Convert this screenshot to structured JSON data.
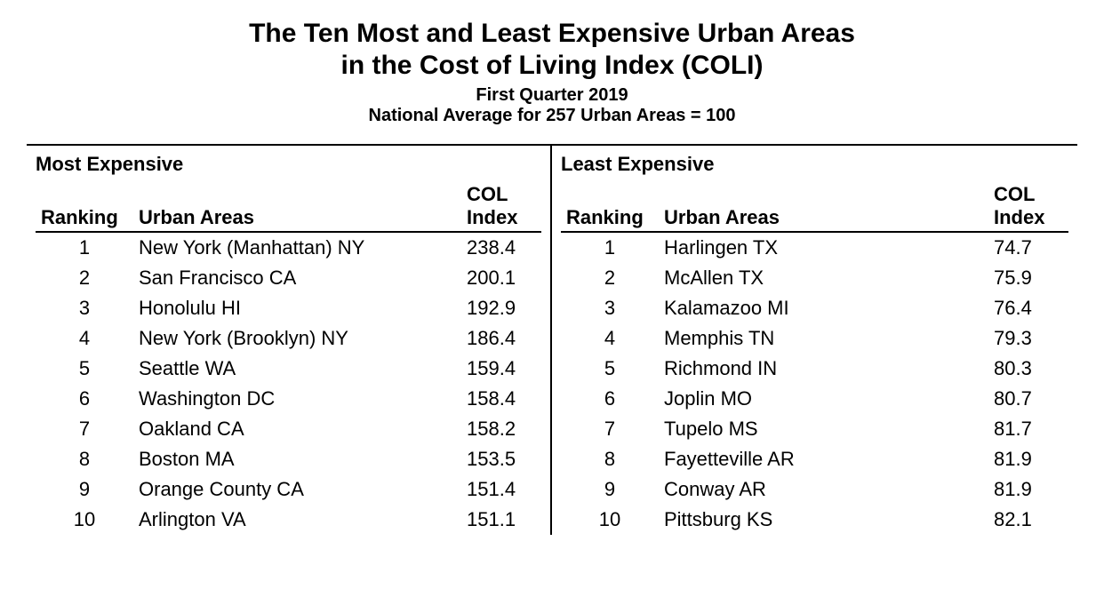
{
  "title_line1": "The Ten Most and Least Expensive Urban Areas",
  "title_line2": "in the Cost of Living Index (COLI)",
  "subtitle1": "First Quarter 2019",
  "subtitle2": "National Average for 257 Urban Areas = 100",
  "columns": {
    "ranking": "Ranking",
    "urban_areas": "Urban Areas",
    "col_index_top": "COL",
    "col_index_bottom": "Index"
  },
  "most_expensive": {
    "label": "Most Expensive",
    "rows": [
      {
        "rank": "1",
        "area": "New York (Manhattan) NY",
        "index": "238.4"
      },
      {
        "rank": "2",
        "area": "San Francisco CA",
        "index": "200.1"
      },
      {
        "rank": "3",
        "area": "Honolulu HI",
        "index": "192.9"
      },
      {
        "rank": "4",
        "area": "New York (Brooklyn) NY",
        "index": "186.4"
      },
      {
        "rank": "5",
        "area": "Seattle WA",
        "index": "159.4"
      },
      {
        "rank": "6",
        "area": "Washington DC",
        "index": "158.4"
      },
      {
        "rank": "7",
        "area": "Oakland CA",
        "index": "158.2"
      },
      {
        "rank": "8",
        "area": "Boston MA",
        "index": "153.5"
      },
      {
        "rank": "9",
        "area": "Orange County CA",
        "index": "151.4"
      },
      {
        "rank": "10",
        "area": "Arlington VA",
        "index": "151.1"
      }
    ]
  },
  "least_expensive": {
    "label": "Least Expensive",
    "rows": [
      {
        "rank": "1",
        "area": "Harlingen TX",
        "index": "74.7"
      },
      {
        "rank": "2",
        "area": "McAllen TX",
        "index": "75.9"
      },
      {
        "rank": "3",
        "area": "Kalamazoo MI",
        "index": "76.4"
      },
      {
        "rank": "4",
        "area": "Memphis TN",
        "index": "79.3"
      },
      {
        "rank": "5",
        "area": "Richmond IN",
        "index": "80.3"
      },
      {
        "rank": "6",
        "area": "Joplin MO",
        "index": "80.7"
      },
      {
        "rank": "7",
        "area": "Tupelo MS",
        "index": "81.7"
      },
      {
        "rank": "8",
        "area": "Fayetteville AR",
        "index": "81.9"
      },
      {
        "rank": "9",
        "area": "Conway AR",
        "index": "81.9"
      },
      {
        "rank": "10",
        "area": "Pittsburg KS",
        "index": "82.1"
      }
    ]
  },
  "style": {
    "background_color": "#ffffff",
    "text_color": "#000000",
    "rule_color": "#000000",
    "title_fontsize": 30,
    "subtitle_fontsize": 20,
    "body_fontsize": 22,
    "font_family": "Arial, Helvetica, sans-serif"
  }
}
